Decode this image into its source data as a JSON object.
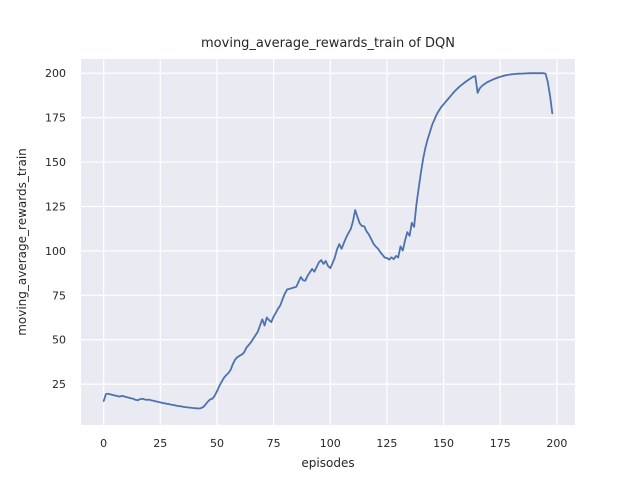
{
  "figure": {
    "title": "moving_average_rewards_train of DQN",
    "xlabel": "episodes",
    "ylabel": "moving_average_rewards_train"
  },
  "chart_data": {
    "type": "line",
    "title": "moving_average_rewards_train of DQN",
    "xlabel": "episodes",
    "ylabel": "moving_average_rewards_train",
    "xlim": [
      -10,
      208
    ],
    "ylim": [
      2,
      208
    ],
    "x_ticks": [
      0,
      25,
      50,
      75,
      100,
      125,
      150,
      175,
      200
    ],
    "y_ticks": [
      25,
      50,
      75,
      100,
      125,
      150,
      175,
      200
    ],
    "grid": true,
    "legend_position": "none",
    "style": {
      "line_color": "#4C72B0",
      "plot_background": "#EAEAF2",
      "grid_color": "#FFFFFF",
      "text_color": "#262626",
      "figure_background": "#FFFFFF",
      "line_width": 1.8
    },
    "series": [
      {
        "name": "DQN",
        "points": [
          [
            0,
            15.5
          ],
          [
            1,
            19.4
          ],
          [
            2,
            19.6
          ],
          [
            3,
            19.2
          ],
          [
            4,
            18.9
          ],
          [
            5,
            18.6
          ],
          [
            6,
            18.3
          ],
          [
            7,
            18.0
          ],
          [
            8,
            18.4
          ],
          [
            9,
            18.1
          ],
          [
            10,
            17.7
          ],
          [
            11,
            17.4
          ],
          [
            12,
            17.1
          ],
          [
            13,
            16.8
          ],
          [
            14,
            16.2
          ],
          [
            15,
            15.9
          ],
          [
            16,
            16.5
          ],
          [
            17,
            16.8
          ],
          [
            18,
            16.4
          ],
          [
            19,
            16.1
          ],
          [
            20,
            16.3
          ],
          [
            21,
            15.9
          ],
          [
            22,
            15.6
          ],
          [
            23,
            15.3
          ],
          [
            24,
            15.0
          ],
          [
            25,
            14.7
          ],
          [
            26,
            14.4
          ],
          [
            27,
            14.2
          ],
          [
            28,
            13.9
          ],
          [
            29,
            13.7
          ],
          [
            30,
            13.4
          ],
          [
            31,
            13.2
          ],
          [
            32,
            12.9
          ],
          [
            33,
            12.7
          ],
          [
            34,
            12.5
          ],
          [
            35,
            12.3
          ],
          [
            36,
            12.1
          ],
          [
            37,
            11.9
          ],
          [
            38,
            11.8
          ],
          [
            39,
            11.6
          ],
          [
            40,
            11.5
          ],
          [
            41,
            11.4
          ],
          [
            42,
            11.3
          ],
          [
            43,
            11.5
          ],
          [
            44,
            12.2
          ],
          [
            45,
            13.6
          ],
          [
            46,
            15.2
          ],
          [
            47,
            16.4
          ],
          [
            48,
            16.8
          ],
          [
            49,
            18.5
          ],
          [
            50,
            21.0
          ],
          [
            51,
            23.8
          ],
          [
            52,
            26.2
          ],
          [
            53,
            28.4
          ],
          [
            54,
            30.0
          ],
          [
            55,
            31.2
          ],
          [
            56,
            33.0
          ],
          [
            57,
            36.2
          ],
          [
            58,
            38.8
          ],
          [
            59,
            40.2
          ],
          [
            60,
            41.0
          ],
          [
            61,
            41.6
          ],
          [
            62,
            43.0
          ],
          [
            63,
            45.5
          ],
          [
            64,
            47.0
          ],
          [
            65,
            48.6
          ],
          [
            66,
            50.5
          ],
          [
            67,
            52.5
          ],
          [
            68,
            54.5
          ],
          [
            69,
            58.0
          ],
          [
            70,
            61.5
          ],
          [
            71,
            58.0
          ],
          [
            72,
            62.5
          ],
          [
            73,
            61.0
          ],
          [
            74,
            60.0
          ],
          [
            75,
            63.0
          ],
          [
            76,
            65.2
          ],
          [
            77,
            67.5
          ],
          [
            78,
            69.5
          ],
          [
            79,
            73.0
          ],
          [
            80,
            76.0
          ],
          [
            81,
            78.3
          ],
          [
            82,
            78.6
          ],
          [
            83,
            79.0
          ],
          [
            84,
            79.4
          ],
          [
            85,
            79.8
          ],
          [
            86,
            82.5
          ],
          [
            87,
            85.3
          ],
          [
            88,
            83.5
          ],
          [
            89,
            83.2
          ],
          [
            90,
            86.0
          ],
          [
            91,
            88.0
          ],
          [
            92,
            89.8
          ],
          [
            93,
            88.3
          ],
          [
            94,
            91.0
          ],
          [
            95,
            93.5
          ],
          [
            96,
            94.8
          ],
          [
            97,
            92.7
          ],
          [
            98,
            94.3
          ],
          [
            99,
            91.5
          ],
          [
            100,
            90.3
          ],
          [
            101,
            93.0
          ],
          [
            102,
            96.3
          ],
          [
            103,
            101.0
          ],
          [
            104,
            103.8
          ],
          [
            105,
            101.2
          ],
          [
            106,
            104.5
          ],
          [
            107,
            107.5
          ],
          [
            108,
            110.0
          ],
          [
            109,
            112.2
          ],
          [
            110,
            116.5
          ],
          [
            111,
            123.0
          ],
          [
            112,
            119.0
          ],
          [
            113,
            115.5
          ],
          [
            114,
            114.0
          ],
          [
            115,
            113.8
          ],
          [
            116,
            111.0
          ],
          [
            117,
            109.3
          ],
          [
            118,
            106.8
          ],
          [
            119,
            104.2
          ],
          [
            120,
            102.5
          ],
          [
            121,
            101.3
          ],
          [
            122,
            99.5
          ],
          [
            123,
            97.8
          ],
          [
            124,
            96.3
          ],
          [
            125,
            96.0
          ],
          [
            126,
            95.1
          ],
          [
            127,
            96.4
          ],
          [
            128,
            95.3
          ],
          [
            129,
            97.2
          ],
          [
            130,
            96.3
          ],
          [
            131,
            102.5
          ],
          [
            132,
            100.2
          ],
          [
            133,
            105.8
          ],
          [
            134,
            110.5
          ],
          [
            135,
            108.5
          ],
          [
            136,
            115.8
          ],
          [
            137,
            113.5
          ],
          [
            138,
            126.0
          ],
          [
            139,
            135.0
          ],
          [
            140,
            144.0
          ],
          [
            141,
            152.0
          ],
          [
            142,
            158.0
          ],
          [
            143,
            163.0
          ],
          [
            144,
            167.0
          ],
          [
            145,
            171.0
          ],
          [
            146,
            174.0
          ],
          [
            147,
            177.0
          ],
          [
            148,
            179.0
          ],
          [
            149,
            181.0
          ],
          [
            150,
            182.5
          ],
          [
            151,
            184.0
          ],
          [
            152,
            185.5
          ],
          [
            153,
            187.0
          ],
          [
            154,
            188.5
          ],
          [
            155,
            190.0
          ],
          [
            156,
            191.2
          ],
          [
            157,
            192.4
          ],
          [
            158,
            193.5
          ],
          [
            159,
            194.5
          ],
          [
            160,
            195.4
          ],
          [
            161,
            196.3
          ],
          [
            162,
            197.2
          ],
          [
            163,
            198.0
          ],
          [
            164,
            198.4
          ],
          [
            165,
            189.0
          ],
          [
            166,
            191.5
          ],
          [
            167,
            192.9
          ],
          [
            168,
            193.9
          ],
          [
            169,
            194.7
          ],
          [
            170,
            195.4
          ],
          [
            171,
            196.0
          ],
          [
            172,
            196.6
          ],
          [
            173,
            197.1
          ],
          [
            174,
            197.6
          ],
          [
            175,
            198.0
          ],
          [
            176,
            198.4
          ],
          [
            177,
            198.7
          ],
          [
            178,
            199.0
          ],
          [
            179,
            199.2
          ],
          [
            180,
            199.4
          ],
          [
            181,
            199.5
          ],
          [
            182,
            199.6
          ],
          [
            183,
            199.7
          ],
          [
            184,
            199.8
          ],
          [
            185,
            199.8
          ],
          [
            186,
            199.9
          ],
          [
            187,
            199.9
          ],
          [
            188,
            200.0
          ],
          [
            189,
            200.0
          ],
          [
            190,
            200.0
          ],
          [
            191,
            200.0
          ],
          [
            192,
            200.0
          ],
          [
            193,
            200.0
          ],
          [
            194,
            200.0
          ],
          [
            195,
            199.8
          ],
          [
            196,
            195.0
          ],
          [
            197,
            187.0
          ],
          [
            198,
            177.5
          ]
        ]
      }
    ]
  }
}
